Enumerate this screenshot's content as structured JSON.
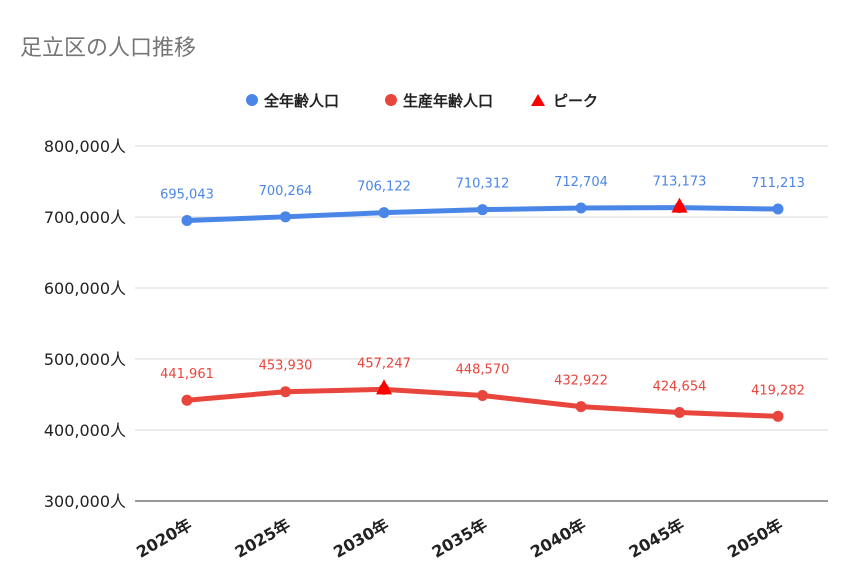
{
  "chart_data": {
    "type": "line",
    "title": "足立区の人口推移",
    "categories": [
      "2020年",
      "2025年",
      "2030年",
      "2035年",
      "2040年",
      "2045年",
      "2050年"
    ],
    "series": [
      {
        "name": "全年齢人口",
        "color": "#4a86e8",
        "values": [
          695043,
          700264,
          706122,
          710312,
          712704,
          713173,
          711213
        ],
        "labels": [
          "695,043",
          "700,264",
          "706,122",
          "710,312",
          "712,704",
          "713,173",
          "711,213"
        ],
        "peak_index": 5
      },
      {
        "name": "生産年齢人口",
        "color": "#e8453c",
        "values": [
          441961,
          453930,
          457247,
          448570,
          432922,
          424654,
          419282
        ],
        "labels": [
          "441,961",
          "453,930",
          "457,247",
          "448,570",
          "432,922",
          "424,654",
          "419,282"
        ],
        "peak_index": 2
      }
    ],
    "peak_marker": {
      "name": "ピーク",
      "color": "#ff0000"
    },
    "ylim": [
      300000,
      800000
    ],
    "yticks": [
      800000,
      700000,
      600000,
      500000,
      400000,
      300000
    ],
    "ytick_labels": [
      "800,000人",
      "700,000人",
      "600,000人",
      "500,000人",
      "400,000人",
      "300,000人"
    ],
    "grid": true,
    "legend_position": "top-center",
    "xlabel": "",
    "ylabel": ""
  }
}
